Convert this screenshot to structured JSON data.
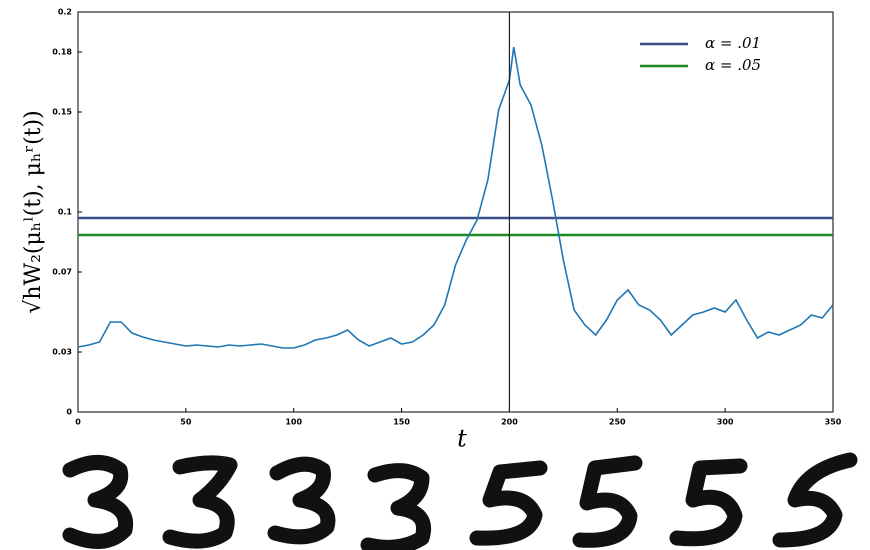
{
  "chart_data": {
    "type": "line",
    "ylabel": "√hW₂(μₕˡ(t), μₕʳ(t))",
    "xlabel": "t",
    "xlim": [
      0,
      350
    ],
    "ylim": [
      0,
      0.2
    ],
    "xticks": [
      0,
      50,
      100,
      150,
      200,
      250,
      300,
      350
    ],
    "yticks": [
      0,
      0.03,
      0.07,
      0.1,
      0.15,
      0.18,
      0.2
    ],
    "vline": 200,
    "hlines": [
      {
        "name": "α = .01",
        "color": "#3b4f8a",
        "value": 0.097
      },
      {
        "name": "α = .05",
        "color": "#1f8a1f",
        "value": 0.0885
      }
    ],
    "series": [
      {
        "color": "#1f77b4",
        "x": [
          0,
          5,
          10,
          15,
          20,
          25,
          30,
          35,
          40,
          45,
          50,
          55,
          60,
          65,
          70,
          75,
          80,
          85,
          90,
          95,
          100,
          105,
          110,
          115,
          120,
          125,
          130,
          135,
          140,
          145,
          150,
          155,
          160,
          165,
          170,
          175,
          180,
          185,
          190,
          195,
          200,
          202,
          205,
          210,
          215,
          220,
          225,
          230,
          235,
          240,
          245,
          250,
          255,
          260,
          265,
          270,
          275,
          280,
          285,
          290,
          295,
          300,
          305,
          310,
          315,
          320,
          325,
          330,
          335,
          340,
          345,
          350
        ],
        "values": [
          0.0325,
          0.0335,
          0.035,
          0.045,
          0.045,
          0.0395,
          0.0375,
          0.036,
          0.035,
          0.034,
          0.033,
          0.0335,
          0.033,
          0.0325,
          0.0335,
          0.033,
          0.0335,
          0.034,
          0.033,
          0.032,
          0.032,
          0.0335,
          0.036,
          0.037,
          0.0385,
          0.041,
          0.036,
          0.033,
          0.035,
          0.037,
          0.034,
          0.035,
          0.0385,
          0.0435,
          0.0535,
          0.0735,
          0.086,
          0.096,
          0.116,
          0.151,
          0.166,
          0.1825,
          0.1635,
          0.1535,
          0.1335,
          0.106,
          0.076,
          0.051,
          0.0435,
          0.0385,
          0.046,
          0.056,
          0.061,
          0.0535,
          0.051,
          0.046,
          0.0385,
          0.0435,
          0.0485,
          0.05,
          0.052,
          0.05,
          0.056,
          0.046,
          0.037,
          0.04,
          0.0385,
          0.041,
          0.0435,
          0.0485,
          0.047,
          0.0535
        ]
      }
    ]
  }
}
